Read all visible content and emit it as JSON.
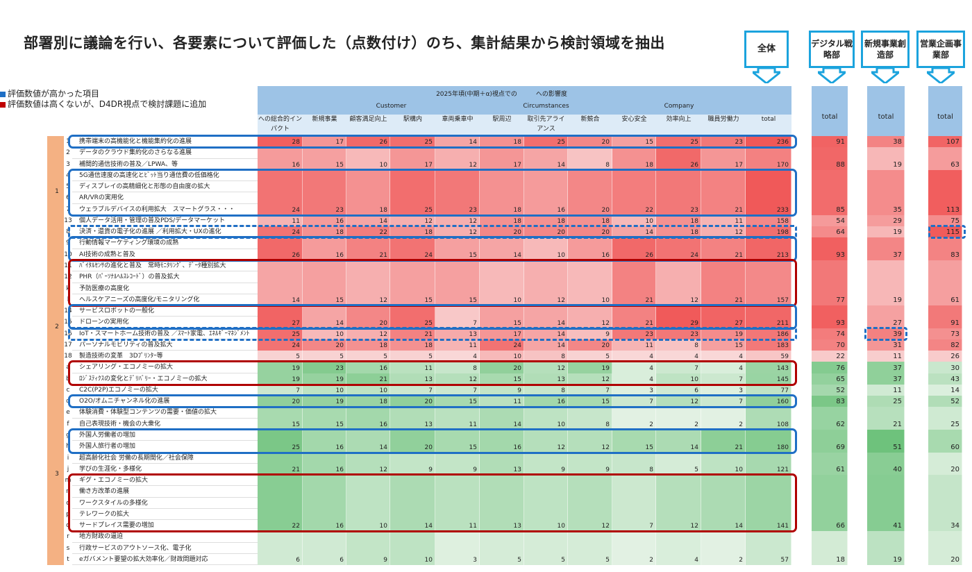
{
  "title": "部署別に議論を行い、各要素について評価した（点数付け）のち、集計結果から検討領域を抽出",
  "legend": [
    {
      "text": "評価数値が高かった項目",
      "color": "#1f6fc5"
    },
    {
      "text": "評価数値は高くないが、D4DR視点で検討課題に追加",
      "color": "#c00000"
    }
  ],
  "callouts": {
    "all": "全体",
    "digital": "デジタル戦略部",
    "newbiz": "新規事業創造部",
    "sales": "営業企画事業部"
  },
  "header": {
    "main": "2025年頃(中期＋α)視点での　　　への影響度",
    "groups": [
      "Customer",
      "Circumstances",
      "Company"
    ],
    "columns": [
      "への総合的インパクト",
      "新規事業",
      "顧客満足向上",
      "駅構内",
      "車両乗車中",
      "駅周辺",
      "取引先アライアンス",
      "新競合",
      "安心安全",
      "効率向上",
      "職員労働力",
      "total"
    ],
    "side_total": "total"
  },
  "section_nums": [
    "1",
    "2",
    "3"
  ],
  "rows": [
    {
      "id": "1",
      "label": "携帯端末の高機能化と機能集約化の進展",
      "v": [
        28,
        17,
        26,
        25,
        14,
        18,
        25,
        20,
        15,
        25,
        23,
        236
      ],
      "d": "91",
      "n": "38",
      "s": "107"
    },
    {
      "id": "2",
      "label": "データのクラウド集約化のさらなる進展",
      "v": [],
      "d": "",
      "n": "",
      "s": ""
    },
    {
      "id": "3",
      "label": "補間的通信技術の普及／LPWA、等",
      "v": [
        16,
        15,
        10,
        17,
        12,
        17,
        14,
        8,
        18,
        26,
        17,
        170
      ],
      "d": "88",
      "n": "19",
      "s": "63"
    },
    {
      "id": "4",
      "label": "5G通信速度の高速化とﾋﾞｯﾄ当り通信費の低価格化",
      "v": [],
      "d": "",
      "n": "",
      "s": ""
    },
    {
      "id": "5",
      "label": "ディスプレイの高精細化と形態の自由度の拡大",
      "v": [],
      "d": "",
      "n": "",
      "s": ""
    },
    {
      "id": "6",
      "label": "AR/VRの実用化",
      "v": [],
      "d": "",
      "n": "",
      "s": ""
    },
    {
      "id": "7",
      "label": "ウェラブルデバイスの利用拡大　スマートグラス・・・",
      "v": [
        24,
        23,
        18,
        25,
        23,
        18,
        16,
        20,
        22,
        23,
        21,
        233
      ],
      "d": "85",
      "n": "35",
      "s": "113"
    },
    {
      "id": "13",
      "label": "個人データ活用・管理の普及PDS/データマーケット",
      "v": [
        11,
        16,
        14,
        12,
        12,
        18,
        18,
        18,
        10,
        18,
        11,
        158
      ],
      "d": "54",
      "n": "29",
      "s": "75"
    },
    {
      "id": "8",
      "label": "決済・還貨の電子化の進展 ／利用拡大・UXの進化",
      "v": [
        24,
        18,
        22,
        18,
        12,
        20,
        20,
        20,
        14,
        18,
        12,
        198
      ],
      "d": "64",
      "n": "19",
      "s": "115"
    },
    {
      "id": "9",
      "label": "行動情報マーケティング環境の成熟",
      "v": [],
      "d": "",
      "n": "",
      "s": ""
    },
    {
      "id": "10",
      "label": "AI技術の成熟と普及",
      "v": [
        26,
        16,
        21,
        24,
        15,
        14,
        10,
        16,
        26,
        24,
        21,
        213
      ],
      "d": "93",
      "n": "37",
      "s": "83"
    },
    {
      "id": "11",
      "label": "ﾊﾞｲﾀﾙｾﾝｻの進化と普及　常時ﾓﾆﾀﾘﾝｸﾞ、ﾃﾞｰﾀ種別拡大",
      "v": [],
      "d": "",
      "n": "",
      "s": ""
    },
    {
      "id": "12",
      "label": "PHR（ﾊﾟｰｿﾅﾙﾍﾙｽﾚｺｰﾄﾞ）の普及拡大",
      "v": [],
      "d": "",
      "n": "",
      "s": ""
    },
    {
      "id": "k",
      "label": "予防医療の高度化",
      "v": [],
      "d": "",
      "n": "",
      "s": ""
    },
    {
      "id": "l",
      "label": "ヘルスケアニーズの高度化/モニタリング化",
      "v": [
        14,
        15,
        12,
        15,
        15,
        10,
        12,
        10,
        21,
        12,
        21,
        157
      ],
      "d": "77",
      "n": "19",
      "s": "61"
    },
    {
      "id": "14",
      "label": "サービスロボットの一般化",
      "v": [],
      "d": "",
      "n": "",
      "s": ""
    },
    {
      "id": "15",
      "label": "ドローンの実用化",
      "v": [
        27,
        14,
        20,
        25,
        7,
        15,
        14,
        12,
        21,
        29,
        27,
        211
      ],
      "d": "93",
      "n": "27",
      "s": "91"
    },
    {
      "id": "16",
      "label": "IoT・スマートホーム技術の普及 ／ｽﾏｰﾄ家電、ｴﾈﾙｷﾞｰﾏﾈｼﾞﾒﾝﾄ",
      "v": [
        25,
        10,
        12,
        21,
        13,
        17,
        14,
        9,
        23,
        23,
        19,
        186
      ],
      "d": "74",
      "n": "39",
      "s": "73"
    },
    {
      "id": "17",
      "label": "パーソナルモビリティの普及拡大",
      "v": [
        24,
        20,
        18,
        18,
        11,
        24,
        14,
        20,
        11,
        8,
        15,
        183
      ],
      "d": "70",
      "n": "31",
      "s": "82"
    },
    {
      "id": "18",
      "label": "製造技術の変革　3Dﾌﾟﾘﾝﾀｰ等",
      "v": [
        5,
        5,
        5,
        5,
        4,
        10,
        8,
        5,
        4,
        4,
        4,
        59
      ],
      "d": "22",
      "n": "11",
      "s": "26"
    },
    {
      "id": "a",
      "label": "シェアリング・エコノミーの拡大",
      "v": [
        19,
        23,
        16,
        11,
        8,
        20,
        12,
        19,
        4,
        7,
        4,
        143
      ],
      "d": "76",
      "n": "37",
      "s": "30"
    },
    {
      "id": "b",
      "label": "ﾛｼﾞｽﾃｨｸｽの変化とﾃﾞﾘﾊﾞﾘｰ・エコノミーの拡大",
      "v": [
        19,
        19,
        21,
        13,
        12,
        15,
        13,
        12,
        4,
        10,
        7,
        145
      ],
      "d": "65",
      "n": "37",
      "s": "43"
    },
    {
      "id": "c",
      "label": "C2C(P2P)エコノミーの拡大",
      "v": [
        7,
        10,
        10,
        7,
        7,
        9,
        8,
        7,
        3,
        6,
        3,
        77
      ],
      "d": "52",
      "n": "11",
      "s": "14"
    },
    {
      "id": "d",
      "label": "O2O/オムニチャンネル化の進展",
      "v": [
        20,
        19,
        18,
        20,
        15,
        11,
        16,
        15,
        7,
        12,
        7,
        160
      ],
      "d": "83",
      "n": "25",
      "s": "52"
    },
    {
      "id": "e",
      "label": "体験消費・体験型コンテンツの需要・価値の拡大",
      "v": [],
      "d": "",
      "n": "",
      "s": ""
    },
    {
      "id": "f",
      "label": "自己表現技術・機会の大衆化",
      "v": [
        15,
        15,
        16,
        13,
        11,
        14,
        10,
        8,
        2,
        2,
        2,
        108
      ],
      "d": "62",
      "n": "21",
      "s": "25"
    },
    {
      "id": "g",
      "label": "外国人労働者の増加",
      "v": [],
      "d": "",
      "n": "",
      "s": ""
    },
    {
      "id": "h",
      "label": "外国人旅行者の増加",
      "v": [
        25,
        16,
        14,
        20,
        15,
        16,
        12,
        12,
        15,
        14,
        21,
        180
      ],
      "d": "69",
      "n": "51",
      "s": "60"
    },
    {
      "id": "i",
      "label": "超高齢化社会 労働の長期間化／社会保障",
      "v": [],
      "d": "",
      "n": "",
      "s": ""
    },
    {
      "id": "j",
      "label": "学びの生涯化・多様化",
      "v": [
        21,
        16,
        12,
        9,
        9,
        13,
        9,
        9,
        8,
        5,
        10,
        121
      ],
      "d": "61",
      "n": "40",
      "s": "20"
    },
    {
      "id": "m",
      "label": "ギグ・エコノミーの拡大",
      "v": [],
      "d": "",
      "n": "",
      "s": ""
    },
    {
      "id": "n",
      "label": "働き方改革の進展",
      "v": [],
      "d": "",
      "n": "",
      "s": ""
    },
    {
      "id": "o",
      "label": "ワークスタイルの多様化",
      "v": [],
      "d": "",
      "n": "",
      "s": ""
    },
    {
      "id": "p",
      "label": "テレワークの拡大",
      "v": [],
      "d": "",
      "n": "",
      "s": ""
    },
    {
      "id": "q",
      "label": "サードプレイス需要の増加",
      "v": [
        22,
        16,
        10,
        14,
        11,
        13,
        10,
        12,
        7,
        12,
        14,
        141
      ],
      "d": "66",
      "n": "41",
      "s": "34"
    },
    {
      "id": "r",
      "label": "地方財政の逼迫",
      "v": [],
      "d": "",
      "n": "",
      "s": ""
    },
    {
      "id": "s",
      "label": "行政サービスのアウトソース化、電子化",
      "v": [],
      "d": "",
      "n": "",
      "s": ""
    },
    {
      "id": "t",
      "label": "eガバメント要望の拡大効率化／財政問題対応",
      "v": [
        6,
        6,
        9,
        10,
        3,
        5,
        5,
        5,
        2,
        4,
        2,
        57
      ],
      "d": "18",
      "n": "19",
      "s": "20"
    }
  ]
}
